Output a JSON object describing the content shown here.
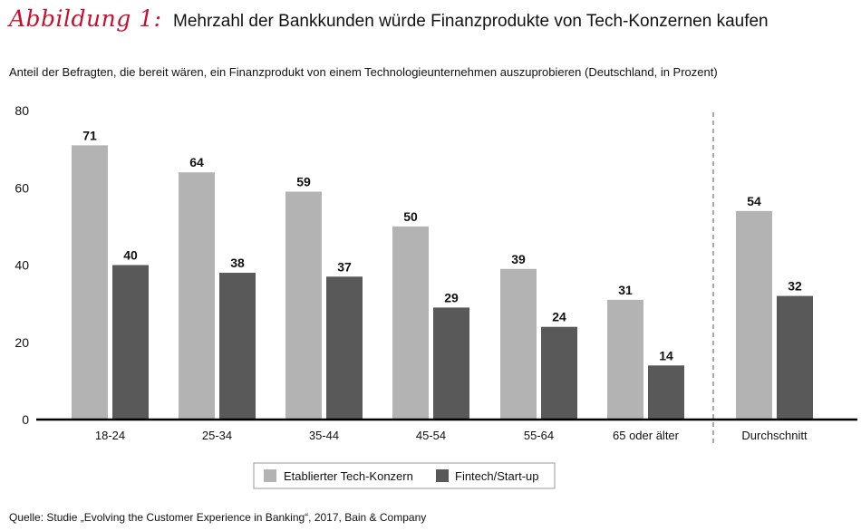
{
  "header": {
    "figure_label": "Abbildung 1:",
    "title": "Mehrzahl der Bankkunden würde Finanzprodukte von Tech-Konzernen kaufen"
  },
  "subtitle": "Anteil der Befragten, die bereit wären, ein Finanzprodukt von einem Technologieunternehmen auszuprobieren (Deutschland, in Prozent)",
  "source": "Quelle: Studie „Evolving the Customer Experience in Banking“, 2017, Bain & Company",
  "colors": {
    "series1": "#b3b3b3",
    "series2": "#595959",
    "axis": "#000000",
    "divider": "#555555"
  },
  "chart_data": {
    "type": "bar",
    "categories": [
      "18-24",
      "25-34",
      "35-44",
      "45-54",
      "55-64",
      "65 oder älter",
      "Durchschnitt"
    ],
    "series": [
      {
        "name": "Etablierter Tech-Konzern",
        "values": [
          71,
          64,
          59,
          50,
          39,
          31,
          54
        ]
      },
      {
        "name": "Fintech/Start-up",
        "values": [
          40,
          38,
          37,
          29,
          24,
          14,
          32
        ]
      }
    ],
    "ylim": [
      0,
      80
    ],
    "yticks": [
      "0",
      "20",
      "40",
      "60",
      "80"
    ],
    "grid": false,
    "legend": "bottom-center",
    "separator_before": "Durchschnitt"
  }
}
